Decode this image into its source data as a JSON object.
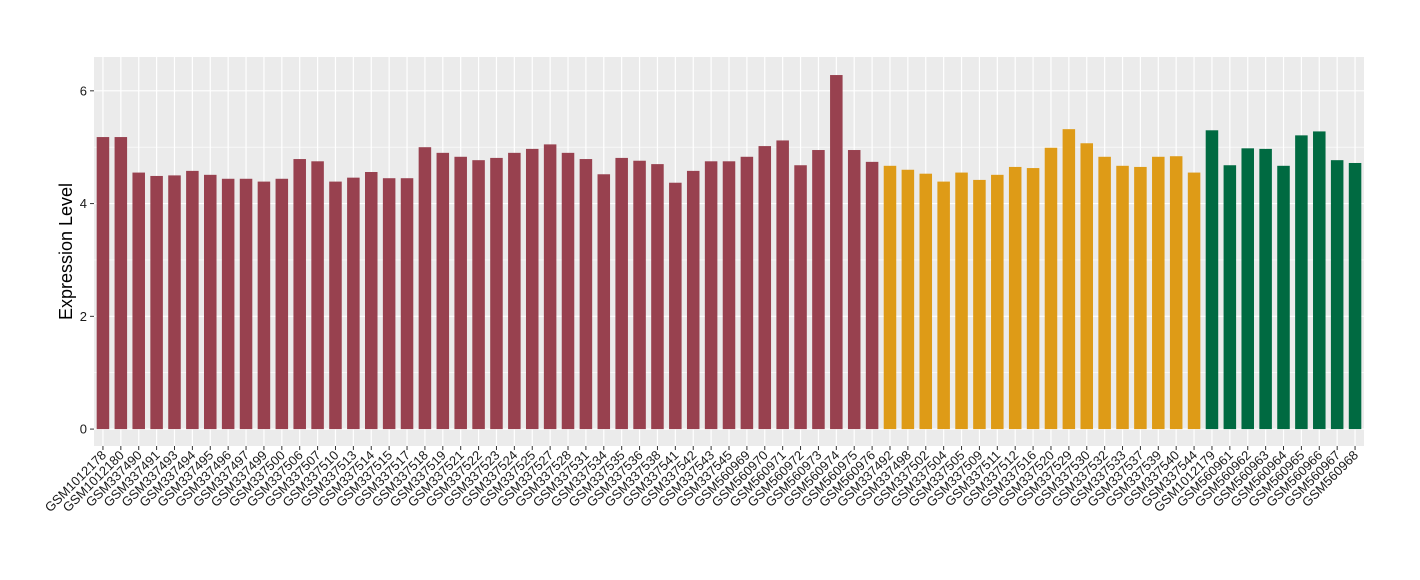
{
  "chart_data": {
    "type": "bar",
    "ylabel": "Expression Level",
    "xlabel": "",
    "ylim": [
      -0.3,
      6.6
    ],
    "yticks": [
      0,
      2,
      4,
      6
    ],
    "grid": true,
    "legend": "none",
    "colors": {
      "panel_background": "#EBEBEB",
      "grid_line": "#FFFFFF",
      "group_1": "#98414F",
      "group_2": "#DE9B17",
      "group_3": "#006A41"
    },
    "categories": [
      "GSM1012178",
      "GSM1012180",
      "GSM337490",
      "GSM337491",
      "GSM337493",
      "GSM337494",
      "GSM337495",
      "GSM337496",
      "GSM337497",
      "GSM337499",
      "GSM337500",
      "GSM337506",
      "GSM337507",
      "GSM337510",
      "GSM337513",
      "GSM337514",
      "GSM337515",
      "GSM337517",
      "GSM337518",
      "GSM337519",
      "GSM337521",
      "GSM337522",
      "GSM337523",
      "GSM337524",
      "GSM337525",
      "GSM337527",
      "GSM337528",
      "GSM337531",
      "GSM337534",
      "GSM337535",
      "GSM337536",
      "GSM337538",
      "GSM337541",
      "GSM337542",
      "GSM337543",
      "GSM337545",
      "GSM560969",
      "GSM560970",
      "GSM560971",
      "GSM560972",
      "GSM560973",
      "GSM560974",
      "GSM560975",
      "GSM560976",
      "GSM337492",
      "GSM337498",
      "GSM337502",
      "GSM337504",
      "GSM337505",
      "GSM337509",
      "GSM337511",
      "GSM337512",
      "GSM337516",
      "GSM337520",
      "GSM337529",
      "GSM337530",
      "GSM337532",
      "GSM337533",
      "GSM337537",
      "GSM337539",
      "GSM337540",
      "GSM337544",
      "GSM1012179",
      "GSM560961",
      "GSM560962",
      "GSM560963",
      "GSM560964",
      "GSM560965",
      "GSM560966",
      "GSM560967",
      "GSM560968"
    ],
    "values": [
      5.18,
      5.18,
      4.55,
      4.49,
      4.5,
      4.58,
      4.51,
      4.44,
      4.44,
      4.39,
      4.44,
      4.79,
      4.75,
      4.39,
      4.46,
      4.56,
      4.45,
      4.45,
      5.0,
      4.9,
      4.83,
      4.77,
      4.81,
      4.9,
      4.97,
      5.05,
      4.9,
      4.79,
      4.52,
      4.81,
      4.76,
      4.7,
      4.37,
      4.58,
      4.75,
      4.75,
      4.83,
      5.02,
      5.12,
      4.68,
      4.95,
      6.28,
      4.95,
      4.74,
      4.67,
      4.6,
      4.53,
      4.39,
      4.55,
      4.42,
      4.51,
      4.65,
      4.63,
      4.99,
      5.32,
      5.07,
      4.83,
      4.67,
      4.65,
      4.83,
      4.84,
      4.55,
      5.3,
      4.68,
      4.98,
      4.97,
      4.67,
      5.21,
      5.28,
      4.77,
      4.72
    ],
    "groups": [
      1,
      1,
      1,
      1,
      1,
      1,
      1,
      1,
      1,
      1,
      1,
      1,
      1,
      1,
      1,
      1,
      1,
      1,
      1,
      1,
      1,
      1,
      1,
      1,
      1,
      1,
      1,
      1,
      1,
      1,
      1,
      1,
      1,
      1,
      1,
      1,
      1,
      1,
      1,
      1,
      1,
      1,
      1,
      1,
      2,
      2,
      2,
      2,
      2,
      2,
      2,
      2,
      2,
      2,
      2,
      2,
      2,
      2,
      2,
      2,
      2,
      2,
      3,
      3,
      3,
      3,
      3,
      3,
      3,
      3,
      3
    ]
  }
}
